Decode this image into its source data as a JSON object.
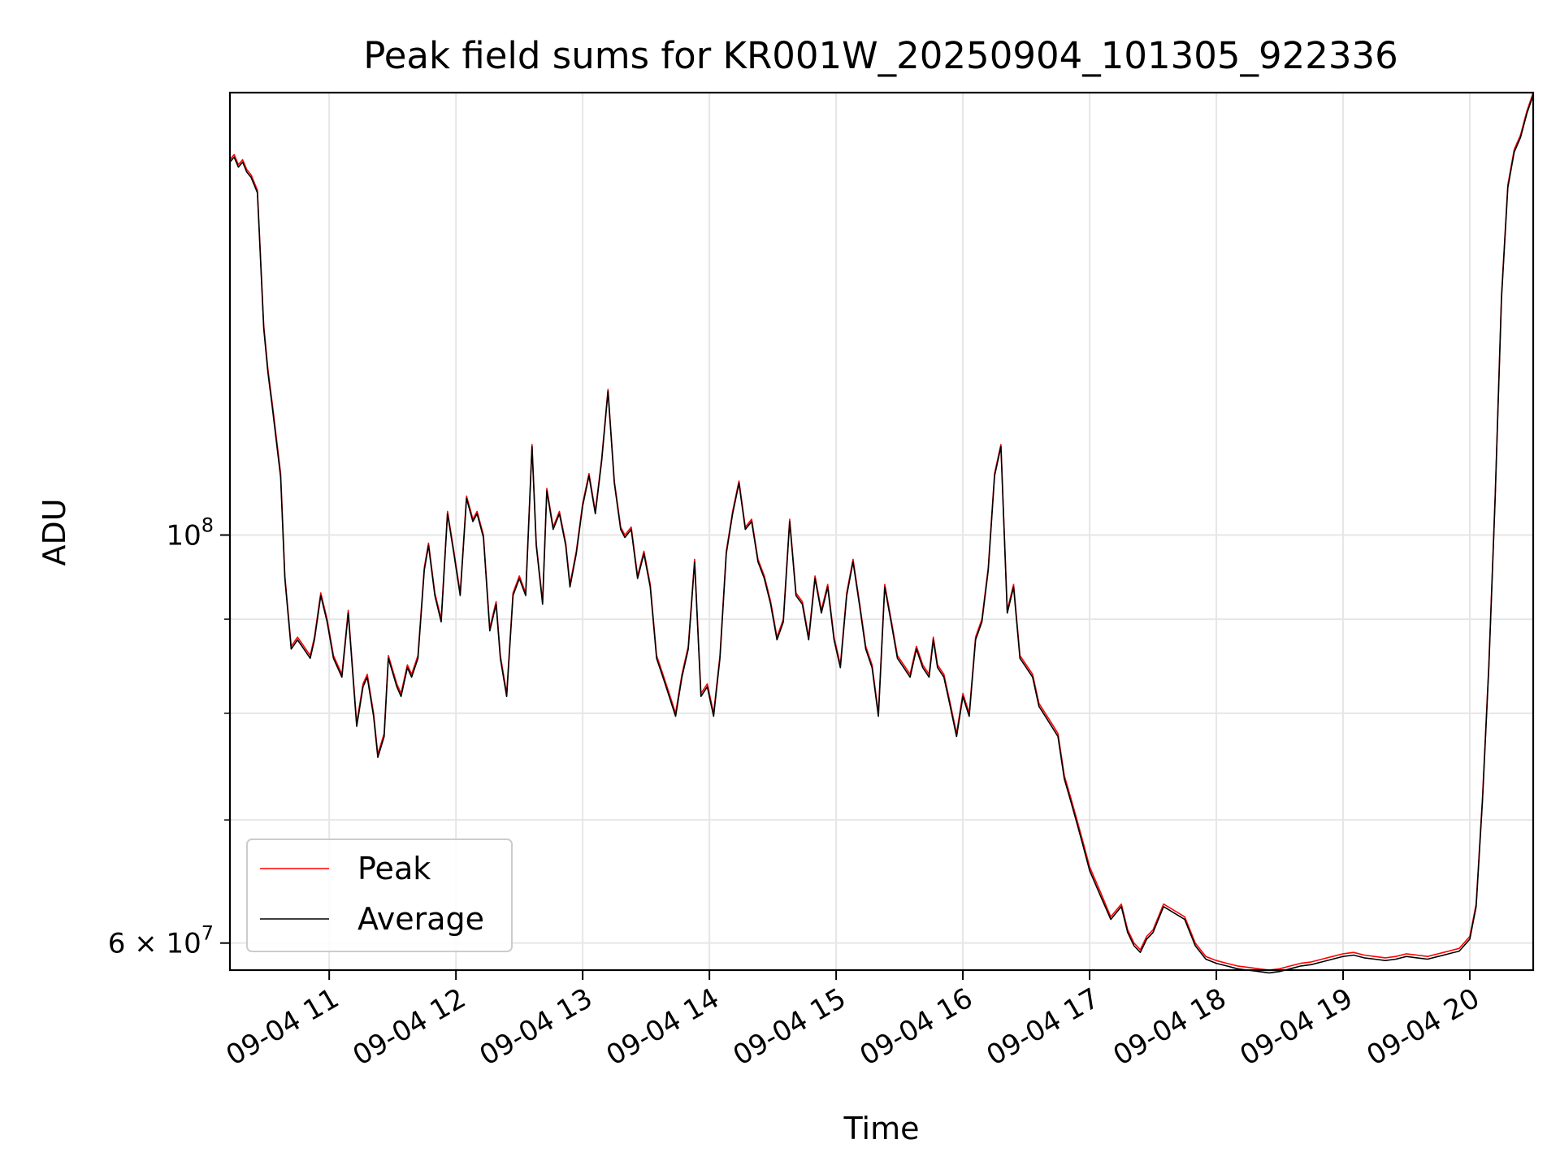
{
  "chart_data": {
    "type": "line",
    "title": "Peak field sums for KR001W_20250904_101305_922336",
    "xlabel": "Time",
    "ylabel": "ADU",
    "yscale": "log",
    "grid": true,
    "legend_position": "lower-left",
    "xlim": [
      "2025-09-04 10:13",
      "2025-09-04 20:30"
    ],
    "ylim": [
      58000000,
      174000000
    ],
    "x_ticks": [
      {
        "value": "2025-09-04 11:00",
        "label": "09-04 11"
      },
      {
        "value": "2025-09-04 12:00",
        "label": "09-04 12"
      },
      {
        "value": "2025-09-04 13:00",
        "label": "09-04 13"
      },
      {
        "value": "2025-09-04 14:00",
        "label": "09-04 14"
      },
      {
        "value": "2025-09-04 15:00",
        "label": "09-04 15"
      },
      {
        "value": "2025-09-04 16:00",
        "label": "09-04 16"
      },
      {
        "value": "2025-09-04 17:00",
        "label": "09-04 17"
      },
      {
        "value": "2025-09-04 18:00",
        "label": "09-04 18"
      },
      {
        "value": "2025-09-04 19:00",
        "label": "09-04 19"
      },
      {
        "value": "2025-09-04 20:00",
        "label": "09-04 20"
      }
    ],
    "y_major_ticks": [
      {
        "value": 60000000,
        "base": "6 × 10",
        "exp": "7"
      },
      {
        "value": 100000000,
        "base": "10",
        "exp": "8"
      }
    ],
    "y_minor_ticks": [
      70000000,
      80000000,
      90000000
    ],
    "x": [
      "2025-09-04 10:13",
      "2025-09-04 10:15",
      "2025-09-04 10:17",
      "2025-09-04 10:19",
      "2025-09-04 10:21",
      "2025-09-04 10:23",
      "2025-09-04 10:26",
      "2025-09-04 10:29",
      "2025-09-04 10:31",
      "2025-09-04 10:33",
      "2025-09-04 10:37",
      "2025-09-04 10:39",
      "2025-09-04 10:42",
      "2025-09-04 10:45",
      "2025-09-04 10:48",
      "2025-09-04 10:51",
      "2025-09-04 10:53",
      "2025-09-04 10:56",
      "2025-09-04 10:59",
      "2025-09-04 11:02",
      "2025-09-04 11:06",
      "2025-09-04 11:09",
      "2025-09-04 11:13",
      "2025-09-04 11:16",
      "2025-09-04 11:18",
      "2025-09-04 11:21",
      "2025-09-04 11:23",
      "2025-09-04 11:26",
      "2025-09-04 11:28",
      "2025-09-04 11:32",
      "2025-09-04 11:34",
      "2025-09-04 11:37",
      "2025-09-04 11:39",
      "2025-09-04 11:42",
      "2025-09-04 11:45",
      "2025-09-04 11:47",
      "2025-09-04 11:50",
      "2025-09-04 11:53",
      "2025-09-04 11:56",
      "2025-09-04 11:59",
      "2025-09-04 12:02",
      "2025-09-04 12:05",
      "2025-09-04 12:08",
      "2025-09-04 12:10",
      "2025-09-04 12:13",
      "2025-09-04 12:16",
      "2025-09-04 12:19",
      "2025-09-04 12:21",
      "2025-09-04 12:24",
      "2025-09-04 12:27",
      "2025-09-04 12:30",
      "2025-09-04 12:33",
      "2025-09-04 12:36",
      "2025-09-04 12:38",
      "2025-09-04 12:41",
      "2025-09-04 12:43",
      "2025-09-04 12:46",
      "2025-09-04 12:49",
      "2025-09-04 12:52",
      "2025-09-04 12:54",
      "2025-09-04 12:57",
      "2025-09-04 13:00",
      "2025-09-04 13:03",
      "2025-09-04 13:06",
      "2025-09-04 13:09",
      "2025-09-04 13:12",
      "2025-09-04 13:15",
      "2025-09-04 13:18",
      "2025-09-04 13:20",
      "2025-09-04 13:23",
      "2025-09-04 13:26",
      "2025-09-04 13:29",
      "2025-09-04 13:32",
      "2025-09-04 13:35",
      "2025-09-04 13:38",
      "2025-09-04 13:41",
      "2025-09-04 13:44",
      "2025-09-04 13:47",
      "2025-09-04 13:50",
      "2025-09-04 13:53",
      "2025-09-04 13:56",
      "2025-09-04 13:59",
      "2025-09-04 14:02",
      "2025-09-04 14:05",
      "2025-09-04 14:08",
      "2025-09-04 14:11",
      "2025-09-04 14:14",
      "2025-09-04 14:17",
      "2025-09-04 14:20",
      "2025-09-04 14:23",
      "2025-09-04 14:26",
      "2025-09-04 14:29",
      "2025-09-04 14:32",
      "2025-09-04 14:35",
      "2025-09-04 14:38",
      "2025-09-04 14:41",
      "2025-09-04 14:44",
      "2025-09-04 14:47",
      "2025-09-04 14:50",
      "2025-09-04 14:53",
      "2025-09-04 14:56",
      "2025-09-04 14:59",
      "2025-09-04 15:02",
      "2025-09-04 15:05",
      "2025-09-04 15:08",
      "2025-09-04 15:11",
      "2025-09-04 15:14",
      "2025-09-04 15:17",
      "2025-09-04 15:20",
      "2025-09-04 15:23",
      "2025-09-04 15:26",
      "2025-09-04 15:29",
      "2025-09-04 15:32",
      "2025-09-04 15:35",
      "2025-09-04 15:38",
      "2025-09-04 15:41",
      "2025-09-04 15:44",
      "2025-09-04 15:46",
      "2025-09-04 15:48",
      "2025-09-04 15:51",
      "2025-09-04 15:54",
      "2025-09-04 15:57",
      "2025-09-04 16:00",
      "2025-09-04 16:03",
      "2025-09-04 16:06",
      "2025-09-04 16:09",
      "2025-09-04 16:12",
      "2025-09-04 16:15",
      "2025-09-04 16:18",
      "2025-09-04 16:21",
      "2025-09-04 16:24",
      "2025-09-04 16:27",
      "2025-09-04 16:30",
      "2025-09-04 16:33",
      "2025-09-04 16:36",
      "2025-09-04 16:39",
      "2025-09-04 16:42",
      "2025-09-04 16:45",
      "2025-09-04 16:48",
      "2025-09-04 16:51",
      "2025-09-04 16:54",
      "2025-09-04 16:57",
      "2025-09-04 17:00",
      "2025-09-04 17:05",
      "2025-09-04 17:10",
      "2025-09-04 17:15",
      "2025-09-04 17:18",
      "2025-09-04 17:21",
      "2025-09-04 17:24",
      "2025-09-04 17:27",
      "2025-09-04 17:30",
      "2025-09-04 17:35",
      "2025-09-04 17:40",
      "2025-09-04 17:45",
      "2025-09-04 17:50",
      "2025-09-04 17:55",
      "2025-09-04 18:00",
      "2025-09-04 18:05",
      "2025-09-04 18:10",
      "2025-09-04 18:15",
      "2025-09-04 18:20",
      "2025-09-04 18:25",
      "2025-09-04 18:30",
      "2025-09-04 18:35",
      "2025-09-04 18:40",
      "2025-09-04 18:45",
      "2025-09-04 18:50",
      "2025-09-04 18:55",
      "2025-09-04 19:00",
      "2025-09-04 19:05",
      "2025-09-04 19:10",
      "2025-09-04 19:15",
      "2025-09-04 19:20",
      "2025-09-04 19:25",
      "2025-09-04 19:30",
      "2025-09-04 19:35",
      "2025-09-04 19:40",
      "2025-09-04 19:45",
      "2025-09-04 19:50",
      "2025-09-04 19:55",
      "2025-09-04 20:00",
      "2025-09-04 20:03",
      "2025-09-04 20:06",
      "2025-09-04 20:09",
      "2025-09-04 20:12",
      "2025-09-04 20:15",
      "2025-09-04 20:18",
      "2025-09-04 20:21",
      "2025-09-04 20:24",
      "2025-09-04 20:27",
      "2025-09-04 20:30"
    ],
    "series": [
      {
        "name": "Peak",
        "color": "#ff0000",
        "values": [
          160000000,
          161000000,
          159000000,
          160000000,
          158000000,
          157000000,
          154000000,
          130000000,
          123000000,
          118000000,
          108000000,
          95000000,
          87000000,
          88000000,
          87000000,
          86000000,
          88000000,
          93000000,
          90000000,
          86000000,
          84000000,
          91000000,
          79000000,
          83000000,
          84000000,
          80000000,
          76000000,
          78000000,
          86000000,
          83000000,
          82000000,
          85000000,
          84000000,
          86000000,
          96000000,
          99000000,
          93000000,
          90000000,
          103000000,
          98000000,
          93000000,
          105000000,
          102000000,
          103000000,
          100000000,
          89000000,
          92000000,
          86000000,
          82000000,
          93000000,
          95000000,
          93000000,
          112000000,
          99000000,
          92000000,
          106000000,
          101000000,
          103000000,
          99000000,
          94000000,
          98000000,
          104000000,
          108000000,
          103000000,
          110000000,
          120000000,
          107000000,
          101000000,
          100000000,
          101000000,
          95000000,
          98000000,
          94000000,
          86000000,
          84000000,
          82000000,
          80000000,
          84000000,
          87000000,
          97000000,
          82000000,
          83000000,
          80000000,
          86000000,
          98000000,
          103000000,
          107000000,
          101000000,
          102000000,
          97000000,
          95000000,
          92000000,
          88000000,
          90000000,
          102000000,
          93000000,
          92000000,
          88000000,
          95000000,
          91000000,
          94000000,
          88000000,
          85000000,
          93000000,
          97000000,
          92000000,
          87000000,
          85000000,
          80000000,
          94000000,
          90000000,
          86000000,
          85000000,
          84000000,
          87000000,
          85000000,
          84000000,
          88000000,
          85000000,
          84000000,
          81000000,
          78000000,
          82000000,
          80000000,
          88000000,
          90000000,
          96000000,
          108000000,
          112000000,
          91000000,
          94000000,
          86000000,
          85000000,
          84000000,
          81000000,
          80000000,
          79000000,
          78000000,
          74000000,
          72000000,
          70000000,
          68000000,
          66000000,
          64000000,
          62000000,
          63000000,
          61000000,
          60000000,
          59500000,
          60500000,
          61000000,
          63000000,
          62500000,
          62000000,
          60000000,
          59000000,
          58700000,
          58500000,
          58300000,
          58200000,
          58100000,
          58000000,
          58100000,
          58300000,
          58500000,
          58600000,
          58800000,
          59000000,
          59200000,
          59300000,
          59100000,
          59000000,
          58900000,
          59000000,
          59200000,
          59100000,
          59000000,
          59200000,
          59400000,
          59600000,
          60500000,
          63000000,
          72000000,
          85000000,
          105000000,
          135000000,
          155000000,
          162000000,
          165000000,
          170000000,
          174000000
        ]
      },
      {
        "name": "Average",
        "color": "#000000",
        "values": [
          159500000,
          160500000,
          158500000,
          159500000,
          157500000,
          156500000,
          153500000,
          129500000,
          122500000,
          117500000,
          107500000,
          94700000,
          86700000,
          87700000,
          86700000,
          85700000,
          87700000,
          92700000,
          89700000,
          85700000,
          83700000,
          90700000,
          78700000,
          82700000,
          83700000,
          79700000,
          75700000,
          77700000,
          85700000,
          82700000,
          81700000,
          84700000,
          83700000,
          85700000,
          95700000,
          98700000,
          92700000,
          89700000,
          102700000,
          97700000,
          92700000,
          104700000,
          101700000,
          102700000,
          99700000,
          88700000,
          91700000,
          85700000,
          81700000,
          92700000,
          94700000,
          92700000,
          111700000,
          98700000,
          91700000,
          105700000,
          100700000,
          102700000,
          98700000,
          93700000,
          97700000,
          103700000,
          107700000,
          102700000,
          109700000,
          119700000,
          106700000,
          100700000,
          99700000,
          100700000,
          94700000,
          97700000,
          93700000,
          85700000,
          83700000,
          81700000,
          79700000,
          83700000,
          86700000,
          96700000,
          81700000,
          82700000,
          79700000,
          85700000,
          97700000,
          102700000,
          106700000,
          100700000,
          101700000,
          96700000,
          94700000,
          91700000,
          87700000,
          89700000,
          101700000,
          92700000,
          91700000,
          87700000,
          94700000,
          90700000,
          93700000,
          87700000,
          84700000,
          92700000,
          96700000,
          91700000,
          86700000,
          84700000,
          79700000,
          93700000,
          89700000,
          85700000,
          84700000,
          83700000,
          86700000,
          84700000,
          83700000,
          87700000,
          84700000,
          83700000,
          80700000,
          77700000,
          81700000,
          79700000,
          87700000,
          89700000,
          95700000,
          107700000,
          111700000,
          90700000,
          93700000,
          85700000,
          84700000,
          83700000,
          80700000,
          79700000,
          78700000,
          77700000,
          73700000,
          71700000,
          69700000,
          67700000,
          65700000,
          63700000,
          61800000,
          62800000,
          60800000,
          59800000,
          59300000,
          60300000,
          60800000,
          62800000,
          62300000,
          61800000,
          59800000,
          58800000,
          58500000,
          58300000,
          58100000,
          58000000,
          57900000,
          57800000,
          57900000,
          58100000,
          58300000,
          58400000,
          58600000,
          58800000,
          59000000,
          59100000,
          58900000,
          58800000,
          58700000,
          58800000,
          59000000,
          58900000,
          58800000,
          59000000,
          59200000,
          59400000,
          60300000,
          62800000,
          71700000,
          84700000,
          104700000,
          134500000,
          154500000,
          161500000,
          164500000,
          169500000,
          173500000
        ]
      }
    ]
  }
}
